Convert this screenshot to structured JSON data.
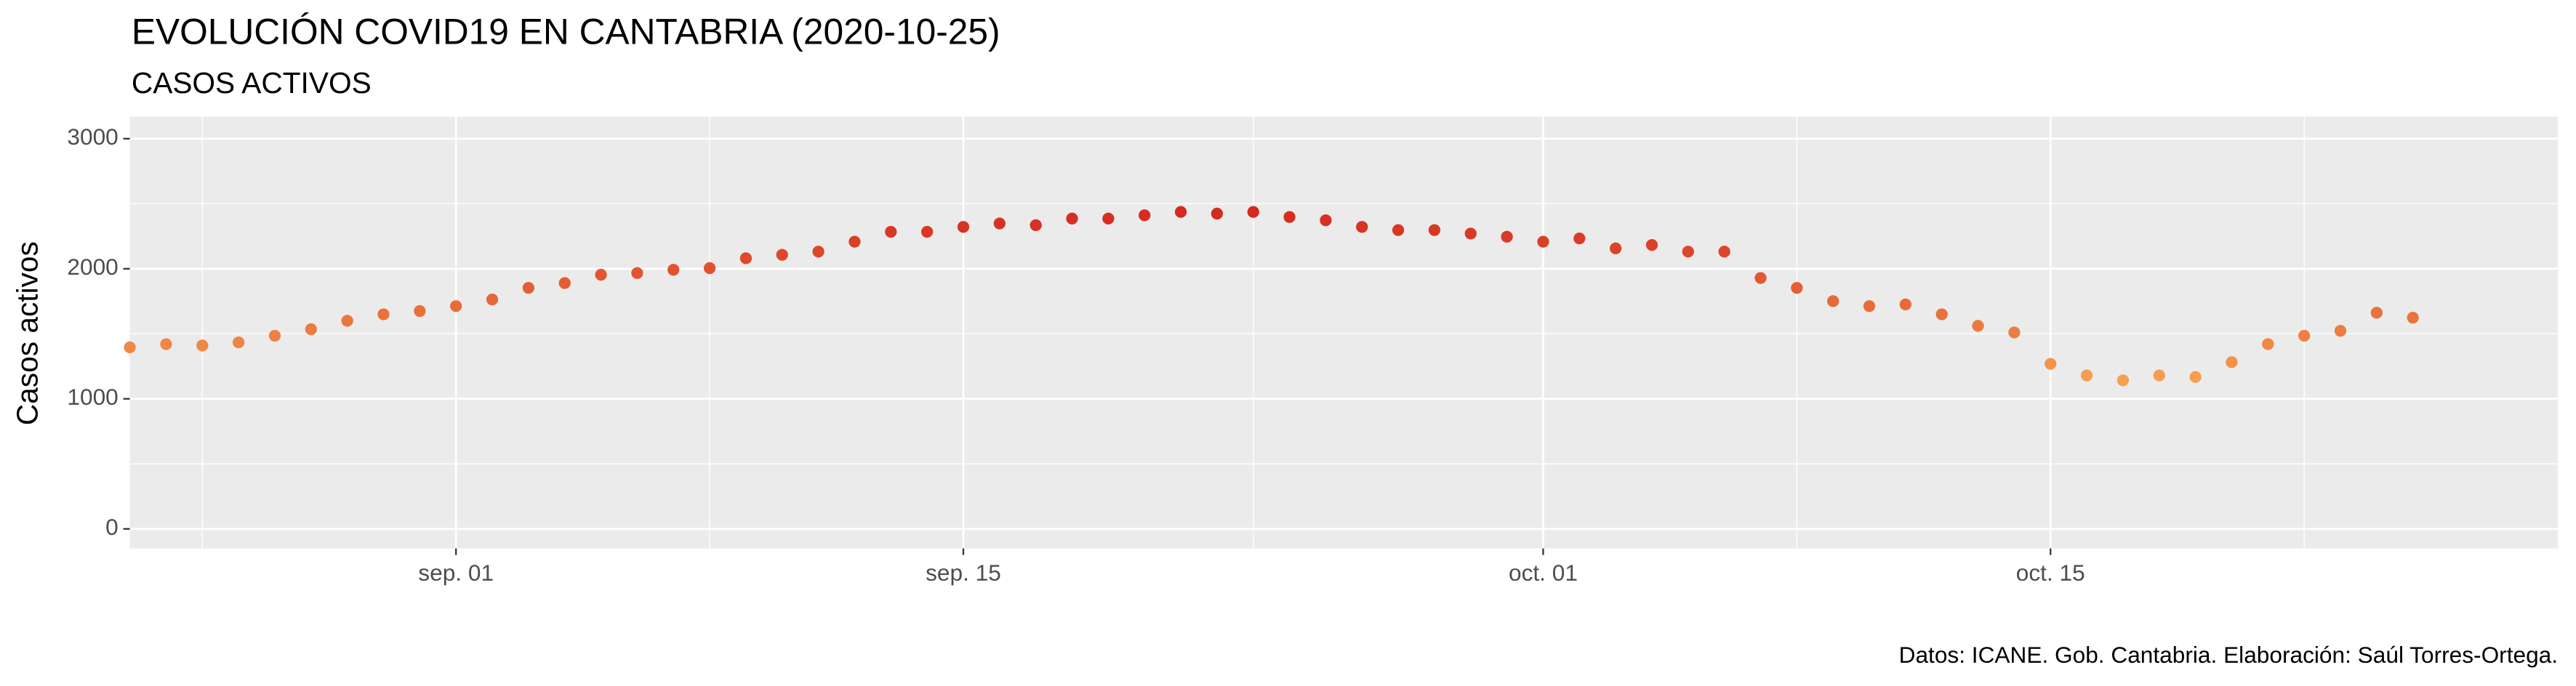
{
  "chart_data": {
    "type": "scatter",
    "title": "EVOLUCIÓN COVID19 EN CANTABRIA (2020-10-25)",
    "subtitle": "CASOS ACTIVOS",
    "y_label": "Casos activos",
    "caption": "Datos: ICANE. Gob. Cantabria. Elaboración: Saúl Torres-Ortega.",
    "x": [
      "08-23",
      "08-24",
      "08-25",
      "08-26",
      "08-27",
      "08-28",
      "08-29",
      "08-30",
      "08-31",
      "09-01",
      "09-02",
      "09-03",
      "09-04",
      "09-05",
      "09-06",
      "09-07",
      "09-08",
      "09-09",
      "09-10",
      "09-11",
      "09-12",
      "09-13",
      "09-14",
      "09-15",
      "09-16",
      "09-17",
      "09-18",
      "09-19",
      "09-20",
      "09-21",
      "09-22",
      "09-23",
      "09-24",
      "09-25",
      "09-26",
      "09-27",
      "09-28",
      "09-29",
      "09-30",
      "10-01",
      "10-02",
      "10-03",
      "10-04",
      "10-05",
      "10-06",
      "10-07",
      "10-08",
      "10-09",
      "10-10",
      "10-11",
      "10-12",
      "10-13",
      "10-14",
      "10-15",
      "10-16",
      "10-17",
      "10-18",
      "10-19",
      "10-20",
      "10-21",
      "10-22",
      "10-23",
      "10-24",
      "10-25"
    ],
    "values": [
      1396,
      1420,
      1410,
      1434,
      1485,
      1535,
      1600,
      1650,
      1675,
      1713,
      1764,
      1853,
      1890,
      1954,
      1967,
      1992,
      2005,
      2081,
      2107,
      2132,
      2208,
      2284,
      2284,
      2322,
      2348,
      2335,
      2386,
      2386,
      2411,
      2437,
      2424,
      2437,
      2398,
      2373,
      2322,
      2297,
      2297,
      2271,
      2246,
      2208,
      2233,
      2157,
      2183,
      2132,
      2132,
      1929,
      1853,
      1751,
      1713,
      1726,
      1650,
      1561,
      1510,
      1269,
      1180,
      1142,
      1180,
      1168,
      1282,
      1421,
      1485,
      1523,
      1662,
      1624
    ],
    "color_low": "#f7a04f",
    "color_high": "#d42a1f",
    "xlim": [
      "08-23",
      "10-29"
    ],
    "xticks": [
      {
        "value": "09-01",
        "label": "sep. 01"
      },
      {
        "value": "09-15",
        "label": "sep. 15"
      },
      {
        "value": "10-01",
        "label": "oct. 01"
      },
      {
        "value": "10-15",
        "label": "oct. 15"
      }
    ],
    "ylim": [
      -150,
      3170
    ],
    "yticks": [
      0,
      1000,
      2000,
      3000
    ],
    "grid": true
  }
}
